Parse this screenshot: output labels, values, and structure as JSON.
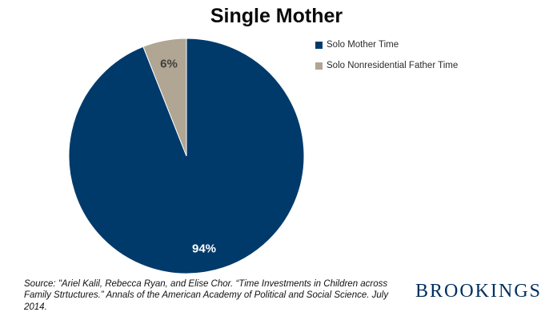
{
  "title": "Single Mother",
  "chart_data": {
    "type": "pie",
    "title": "Single Mother",
    "start_angle_deg": 0,
    "direction": "clockwise",
    "legend_position": "right",
    "slices": [
      {
        "label": "Solo Mother Time",
        "value": 94,
        "data_label": "94%",
        "color": "#003A6B",
        "label_color": "#FFFFFF"
      },
      {
        "label": "Solo Nonresidential Father Time",
        "value": 6,
        "data_label": "6%",
        "color": "#B1A593",
        "label_color": "#3F3F3F"
      }
    ]
  },
  "source": "Source: \"Ariel Kalil, Rebecca Ryan, and Elise Chor. “Time Investments in Children across Family Strtuctures.”  Annals of the  American Academy of Political and Social Science. July 2014.",
  "branding": "BROOKINGS",
  "colors": {
    "slice_border": "#FFFFFF",
    "brand_navy": "#002F5F"
  }
}
